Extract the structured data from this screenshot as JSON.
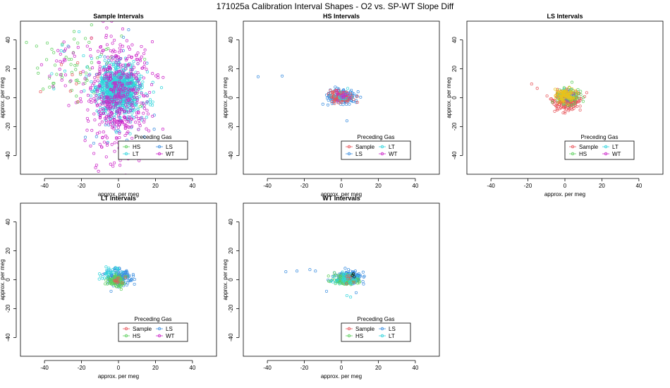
{
  "figure_title": "171025a   Calibration Interval Shapes - O2 vs. SP-WT Slope Diff",
  "colors": {
    "Sample": "#e8555a",
    "HS": "#5ccf5c",
    "LS": "#3d8fe0",
    "LT": "#2fd4dc",
    "WT": "#cc22c8"
  },
  "chart_data": [
    {
      "type": "scatter",
      "title": "Sample Intervals",
      "xlabel": "approx. per meg",
      "ylabel": "approx. per meg",
      "xticks": [
        -40,
        -20,
        0,
        20,
        40
      ],
      "yticks": [
        -40,
        -20,
        0,
        20,
        40
      ],
      "xlim": [
        -53,
        53
      ],
      "ylim": [
        -53,
        53
      ],
      "legend": {
        "title": "Preceding Gas",
        "position": "bottom-right",
        "entries": [
          "HS",
          "LS",
          "LT",
          "WT"
        ]
      },
      "series": [
        {
          "name": "HS",
          "color_key": "HS",
          "clusters": [
            {
              "cx": -25,
              "cy": 20,
              "sx": 12,
              "sy": 13,
              "n": 60
            },
            {
              "cx": 2,
              "cy": 5,
              "sx": 6,
              "sy": 10,
              "n": 20
            }
          ]
        },
        {
          "name": "LS",
          "color_key": "LS",
          "clusters": [
            {
              "cx": 0,
              "cy": 0,
              "sx": 8,
              "sy": 18,
              "n": 90
            }
          ]
        },
        {
          "name": "LT",
          "color_key": "LT",
          "clusters": [
            {
              "cx": 0,
              "cy": 6,
              "sx": 5.5,
              "sy": 8,
              "n": 800
            },
            {
              "cx": 5,
              "cy": -3,
              "sx": 7,
              "sy": 12,
              "n": 60
            },
            {
              "cx": -28,
              "cy": 25,
              "sx": 8,
              "sy": 10,
              "n": 10
            }
          ]
        },
        {
          "name": "WT",
          "color_key": "WT",
          "clusters": [
            {
              "cx": 0,
              "cy": 0,
              "sx": 8,
              "sy": 22,
              "n": 480
            },
            {
              "cx": -28,
              "cy": 25,
              "sx": 10,
              "sy": 12,
              "n": 30
            }
          ]
        },
        {
          "name": "Sample",
          "color_key": "Sample",
          "clusters": [
            {
              "cx": -18,
              "cy": 18,
              "sx": 10,
              "sy": 12,
              "n": 10
            }
          ]
        }
      ]
    },
    {
      "type": "scatter",
      "title": "HS Intervals",
      "xlabel": "approx. per meg",
      "ylabel": "approx. per meg",
      "xticks": [
        -40,
        -20,
        0,
        20,
        40
      ],
      "yticks": [
        -40,
        -20,
        0,
        20,
        40
      ],
      "xlim": [
        -53,
        53
      ],
      "ylim": [
        -53,
        53
      ],
      "legend": {
        "title": "Preceding Gas",
        "position": "bottom-right",
        "entries": [
          "Sample",
          "LT",
          "LS",
          "WT"
        ]
      },
      "series": [
        {
          "name": "LS",
          "color_key": "LS",
          "clusters": [
            {
              "cx": 0,
              "cy": 0.5,
              "sx": 3.5,
              "sy": 2.2,
              "n": 170
            }
          ],
          "points": [
            [
              -45,
              14.5
            ],
            [
              -32,
              15
            ],
            [
              -10,
              -4.5
            ],
            [
              3,
              -16
            ],
            [
              -5,
              -4
            ],
            [
              8,
              -2
            ]
          ]
        },
        {
          "name": "Sample",
          "color_key": "Sample",
          "clusters": [
            {
              "cx": 0,
              "cy": 0.5,
              "sx": 3,
              "sy": 2,
              "n": 120
            }
          ]
        },
        {
          "name": "LT",
          "color_key": "LT",
          "clusters": [
            {
              "cx": 0,
              "cy": 0.5,
              "sx": 2.5,
              "sy": 1.8,
              "n": 20
            }
          ]
        },
        {
          "name": "WT",
          "color_key": "WT",
          "clusters": [
            {
              "cx": 1,
              "cy": 1,
              "sx": 2,
              "sy": 1.5,
              "n": 14
            }
          ]
        }
      ]
    },
    {
      "type": "scatter",
      "title": "LS Intervals",
      "xlabel": "approx. per meg",
      "ylabel": "approx. per meg",
      "xticks": [
        -40,
        -20,
        0,
        20,
        40
      ],
      "yticks": [
        -40,
        -20,
        0,
        20,
        40
      ],
      "xlim": [
        -53,
        53
      ],
      "ylim": [
        -53,
        53
      ],
      "legend": {
        "title": "Preceding Gas",
        "position": "bottom-right",
        "entries": [
          "Sample",
          "LT",
          "HS",
          "WT"
        ]
      },
      "series": [
        {
          "name": "Sample",
          "color_key": "Sample",
          "clusters": [
            {
              "cx": 1,
              "cy": -2,
              "sx": 4,
              "sy": 3.5,
              "n": 180
            }
          ],
          "points": [
            [
              -18,
              9.5
            ],
            [
              -15,
              6.5
            ]
          ]
        },
        {
          "name": "HS",
          "color_key": "HS",
          "clusters": [
            {
              "cx": 2,
              "cy": 1,
              "sx": 3.5,
              "sy": 3,
              "n": 80
            }
          ]
        },
        {
          "name": "WT",
          "color_key": "WT",
          "clusters": [
            {
              "cx": 0,
              "cy": 2,
              "sx": 2.5,
              "sy": 2,
              "n": 20
            }
          ]
        },
        {
          "name": "LT",
          "color_key": "LT",
          "clusters": [
            {
              "cx": 0,
              "cy": 2,
              "sx": 2.5,
              "sy": 2,
              "n": 20
            }
          ]
        },
        {
          "name": "",
          "color_key": "yellow",
          "clusters": [
            {
              "cx": 0,
              "cy": 2,
              "sx": 3,
              "sy": 2.5,
              "n": 90
            }
          ]
        }
      ]
    },
    {
      "type": "scatter",
      "title": "LT Intervals",
      "xlabel": "approx. per meg",
      "ylabel": "approx. per meg",
      "xticks": [
        -40,
        -20,
        0,
        20,
        40
      ],
      "yticks": [
        -40,
        -20,
        0,
        20,
        40
      ],
      "xlim": [
        -53,
        53
      ],
      "ylim": [
        -53,
        53
      ],
      "legend": {
        "title": "Preceding Gas",
        "position": "bottom-right",
        "entries": [
          "Sample",
          "LS",
          "HS",
          "WT"
        ]
      },
      "series": [
        {
          "name": "LS",
          "color_key": "LS",
          "clusters": [
            {
              "cx": 1,
              "cy": 2,
              "sx": 3.2,
              "sy": 2.8,
              "n": 150
            }
          ],
          "points": [
            [
              -4,
              -8
            ]
          ]
        },
        {
          "name": "HS",
          "color_key": "HS",
          "clusters": [
            {
              "cx": -1,
              "cy": -1,
              "sx": 2.5,
              "sy": 2,
              "n": 90
            }
          ]
        },
        {
          "name": "LT",
          "color_key": "LT",
          "clusters": [
            {
              "cx": -4,
              "cy": 5,
              "sx": 3.5,
              "sy": 2,
              "n": 30
            }
          ]
        },
        {
          "name": "Sample",
          "color_key": "Sample",
          "clusters": [
            {
              "cx": 0,
              "cy": 0,
              "sx": 2,
              "sy": 1.5,
              "n": 10
            }
          ]
        }
      ]
    },
    {
      "type": "scatter",
      "title": "WT Intervals",
      "xlabel": "approx. per meg",
      "ylabel": "approx. per meg",
      "xticks": [
        -40,
        -20,
        0,
        20,
        40
      ],
      "yticks": [
        -40,
        -20,
        0,
        20,
        40
      ],
      "xlim": [
        -53,
        53
      ],
      "ylim": [
        -53,
        53
      ],
      "legend": {
        "title": "Preceding Gas",
        "position": "bottom-right",
        "entries": [
          "Sample",
          "LS",
          "HS",
          "LT"
        ]
      },
      "series": [
        {
          "name": "LS",
          "color_key": "LS",
          "clusters": [
            {
              "cx": 4,
              "cy": 1.5,
              "sx": 3.8,
              "sy": 2.2,
              "n": 170
            }
          ],
          "points": [
            [
              -30,
              5.5
            ],
            [
              -24,
              6
            ],
            [
              -14,
              6
            ],
            [
              -17,
              7
            ],
            [
              -8,
              -8
            ],
            [
              12,
              -3
            ],
            [
              8,
              -9
            ]
          ]
        },
        {
          "name": "HS",
          "color_key": "HS",
          "clusters": [
            {
              "cx": 2,
              "cy": -0.5,
              "sx": 3.5,
              "sy": 1.8,
              "n": 110
            }
          ]
        },
        {
          "name": "LT",
          "color_key": "LT",
          "clusters": [
            {
              "cx": 3,
              "cy": 0.5,
              "sx": 3.5,
              "sy": 1.6,
              "n": 40
            }
          ],
          "points": [
            [
              3,
              -11
            ],
            [
              5,
              -12
            ]
          ]
        },
        {
          "name": "Sample",
          "color_key": "Sample",
          "clusters": [
            {
              "cx": 2,
              "cy": 0,
              "sx": 3,
              "sy": 1.5,
              "n": 6
            }
          ]
        },
        {
          "name": "",
          "color_key": "black",
          "points": [
            [
              6,
              3
            ],
            [
              7,
              2
            ],
            [
              6.5,
              4
            ]
          ]
        }
      ]
    }
  ]
}
